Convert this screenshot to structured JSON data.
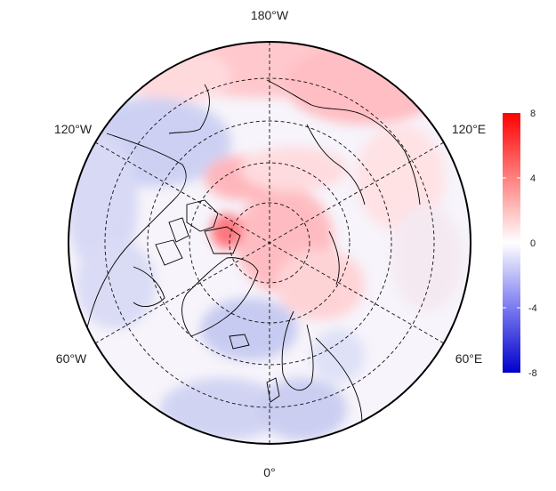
{
  "map": {
    "projection": "north-polar-stereographic",
    "longitude_labels": {
      "top": "180°W",
      "upper_left": "120°W",
      "upper_right": "120°E",
      "lower_left": "60°W",
      "lower_right": "60°E",
      "bottom": "0°"
    },
    "graticule_style": "dashed"
  },
  "colorbar": {
    "ticks": [
      "8",
      "4",
      "0",
      "-4",
      "-8"
    ],
    "min": -8,
    "max": 8,
    "colors": {
      "high": "#ff0000",
      "mid": "#ffffff",
      "low": "#0000cc"
    }
  }
}
